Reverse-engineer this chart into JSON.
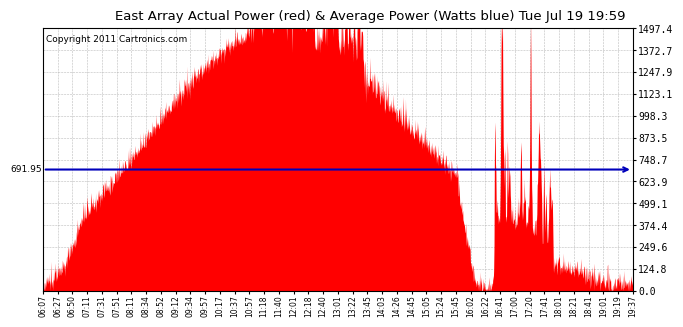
{
  "title": "East Array Actual Power (red) & Average Power (Watts blue) Tue Jul 19 19:59",
  "copyright_text": "Copyright 2011 Cartronics.com",
  "avg_power": 691.95,
  "y_max": 1497.4,
  "y_ticks": [
    0.0,
    124.8,
    249.6,
    374.4,
    499.1,
    623.9,
    748.7,
    873.5,
    998.3,
    1123.1,
    1247.9,
    1372.7,
    1497.4
  ],
  "x_labels": [
    "06:07",
    "06:27",
    "06:50",
    "07:11",
    "07:31",
    "07:51",
    "08:11",
    "08:34",
    "08:52",
    "09:12",
    "09:34",
    "09:57",
    "10:17",
    "10:37",
    "10:57",
    "11:18",
    "11:40",
    "12:01",
    "12:18",
    "12:40",
    "13:01",
    "13:22",
    "13:45",
    "14:03",
    "14:26",
    "14:45",
    "15:05",
    "15:24",
    "15:45",
    "16:02",
    "16:22",
    "16:41",
    "17:00",
    "17:20",
    "17:41",
    "18:01",
    "18:21",
    "18:41",
    "19:01",
    "19:19",
    "19:37"
  ],
  "fill_color": "#FF0000",
  "line_color": "#0000BB",
  "bg_color": "#FFFFFF",
  "grid_color": "#AAAAAA",
  "title_fontsize": 9.5,
  "copyright_fontsize": 6.5,
  "avg_label_fontsize": 7
}
